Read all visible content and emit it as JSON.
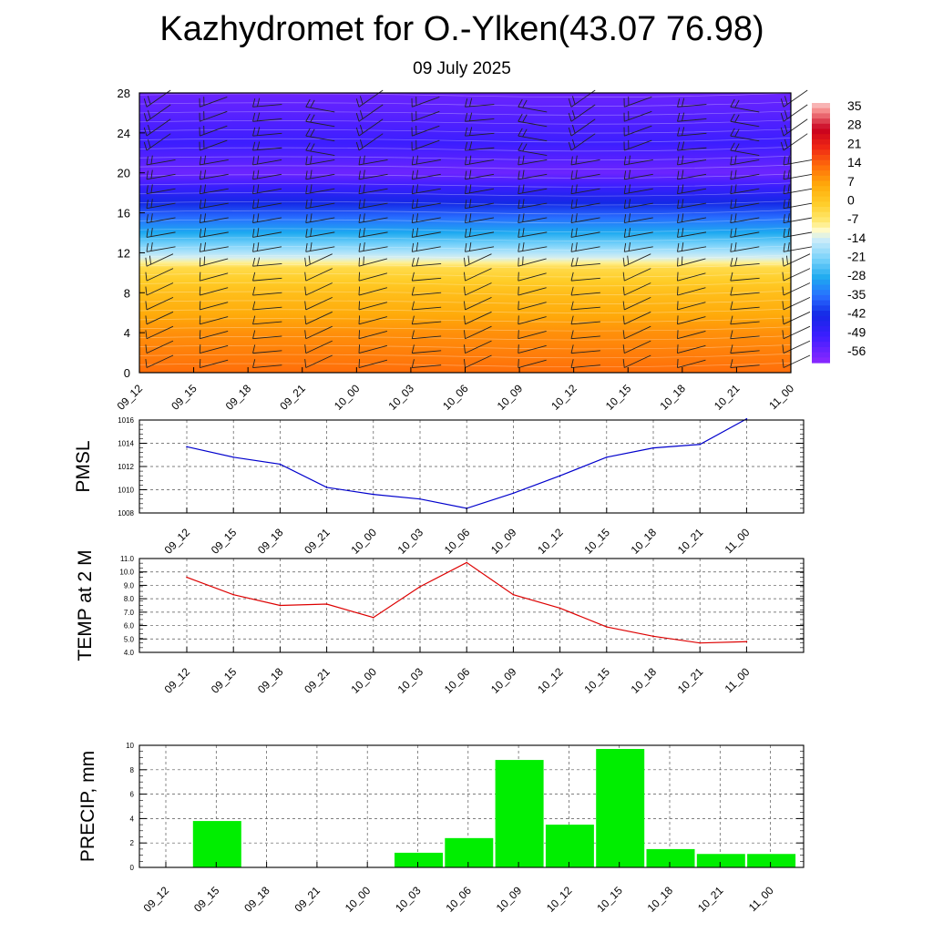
{
  "title": "Kazhydromet for O.-Ylken(43.07 76.98)",
  "subtitle": "09 July 2025",
  "colors": {
    "pmsl_line": "#0000cc",
    "temp_line": "#dd0000",
    "precip_bar": "#00ee00",
    "grid": "#555555"
  },
  "chart_data": [
    {
      "type": "heatmap",
      "name": "cross-section",
      "categories": [
        "09_12",
        "09_15",
        "09_18",
        "09_21",
        "10_00",
        "10_03",
        "10_06",
        "10_09",
        "10_12",
        "10_15",
        "10_18",
        "10_21",
        "11_00"
      ],
      "y_ticks": [
        "0",
        "4",
        "8",
        "12",
        "16",
        "20",
        "24",
        "28"
      ],
      "ylim": [
        0,
        28
      ],
      "colorbar_labels": [
        "35",
        "28",
        "21",
        "14",
        "7",
        "0",
        "-7",
        "-14",
        "-21",
        "-28",
        "-35",
        "-42",
        "-49",
        "-56"
      ],
      "colorbar_range": [
        -60,
        38
      ],
      "temperature_profile": [
        {
          "level": 0,
          "value": 14
        },
        {
          "level": 4,
          "value": 10
        },
        {
          "level": 8,
          "value": 3
        },
        {
          "level": 10.5,
          "value": -3
        },
        {
          "level": 11.5,
          "value": -13
        },
        {
          "level": 14,
          "value": -28
        },
        {
          "level": 17,
          "value": -42
        },
        {
          "level": 20,
          "value": -56
        },
        {
          "level": 23,
          "value": -50
        },
        {
          "level": 28,
          "value": -56
        }
      ],
      "wind_barbs": true
    },
    {
      "type": "line",
      "name": "pmsl",
      "ylabel": "PMSL",
      "categories": [
        "09_12",
        "09_15",
        "09_18",
        "09_21",
        "10_00",
        "10_03",
        "10_06",
        "10_09",
        "10_12",
        "10_15",
        "10_18",
        "10_21",
        "11_00"
      ],
      "y_ticks": [
        "1008",
        "1010",
        "1012",
        "1014",
        "1016"
      ],
      "ylim": [
        1008,
        1016
      ],
      "values": [
        1013.7,
        1012.8,
        1012.2,
        1010.2,
        1009.6,
        1009.2,
        1008.4,
        1009.7,
        1011.2,
        1012.8,
        1013.6,
        1013.9,
        1016.1
      ],
      "grid": true
    },
    {
      "type": "line",
      "name": "temp",
      "ylabel": "TEMP at 2 M",
      "categories": [
        "09_12",
        "09_15",
        "09_18",
        "09_21",
        "10_00",
        "10_03",
        "10_06",
        "10_09",
        "10_12",
        "10_15",
        "10_18",
        "10_21",
        "11_00"
      ],
      "y_ticks": [
        "4.0",
        "5.0",
        "6.0",
        "7.0",
        "8.0",
        "9.0",
        "10.0",
        "11.0"
      ],
      "ylim": [
        4,
        11
      ],
      "values": [
        9.6,
        8.3,
        7.5,
        7.6,
        6.6,
        8.9,
        10.7,
        8.3,
        7.3,
        5.9,
        5.2,
        4.7,
        4.8
      ],
      "grid": true
    },
    {
      "type": "bar",
      "name": "precip",
      "ylabel": "PRECIP, mm",
      "categories": [
        "09_12",
        "09_15",
        "09_18",
        "09_21",
        "10_00",
        "10_03",
        "10_06",
        "10_09",
        "10_12",
        "10_15",
        "10_18",
        "10_21",
        "11_00"
      ],
      "y_ticks": [
        "0",
        "2",
        "4",
        "6",
        "8",
        "10"
      ],
      "ylim": [
        0,
        10
      ],
      "values": [
        0,
        3.8,
        0,
        0,
        0,
        1.2,
        2.4,
        8.8,
        3.5,
        9.7,
        1.5,
        1.1,
        1.1
      ],
      "grid": true
    }
  ]
}
